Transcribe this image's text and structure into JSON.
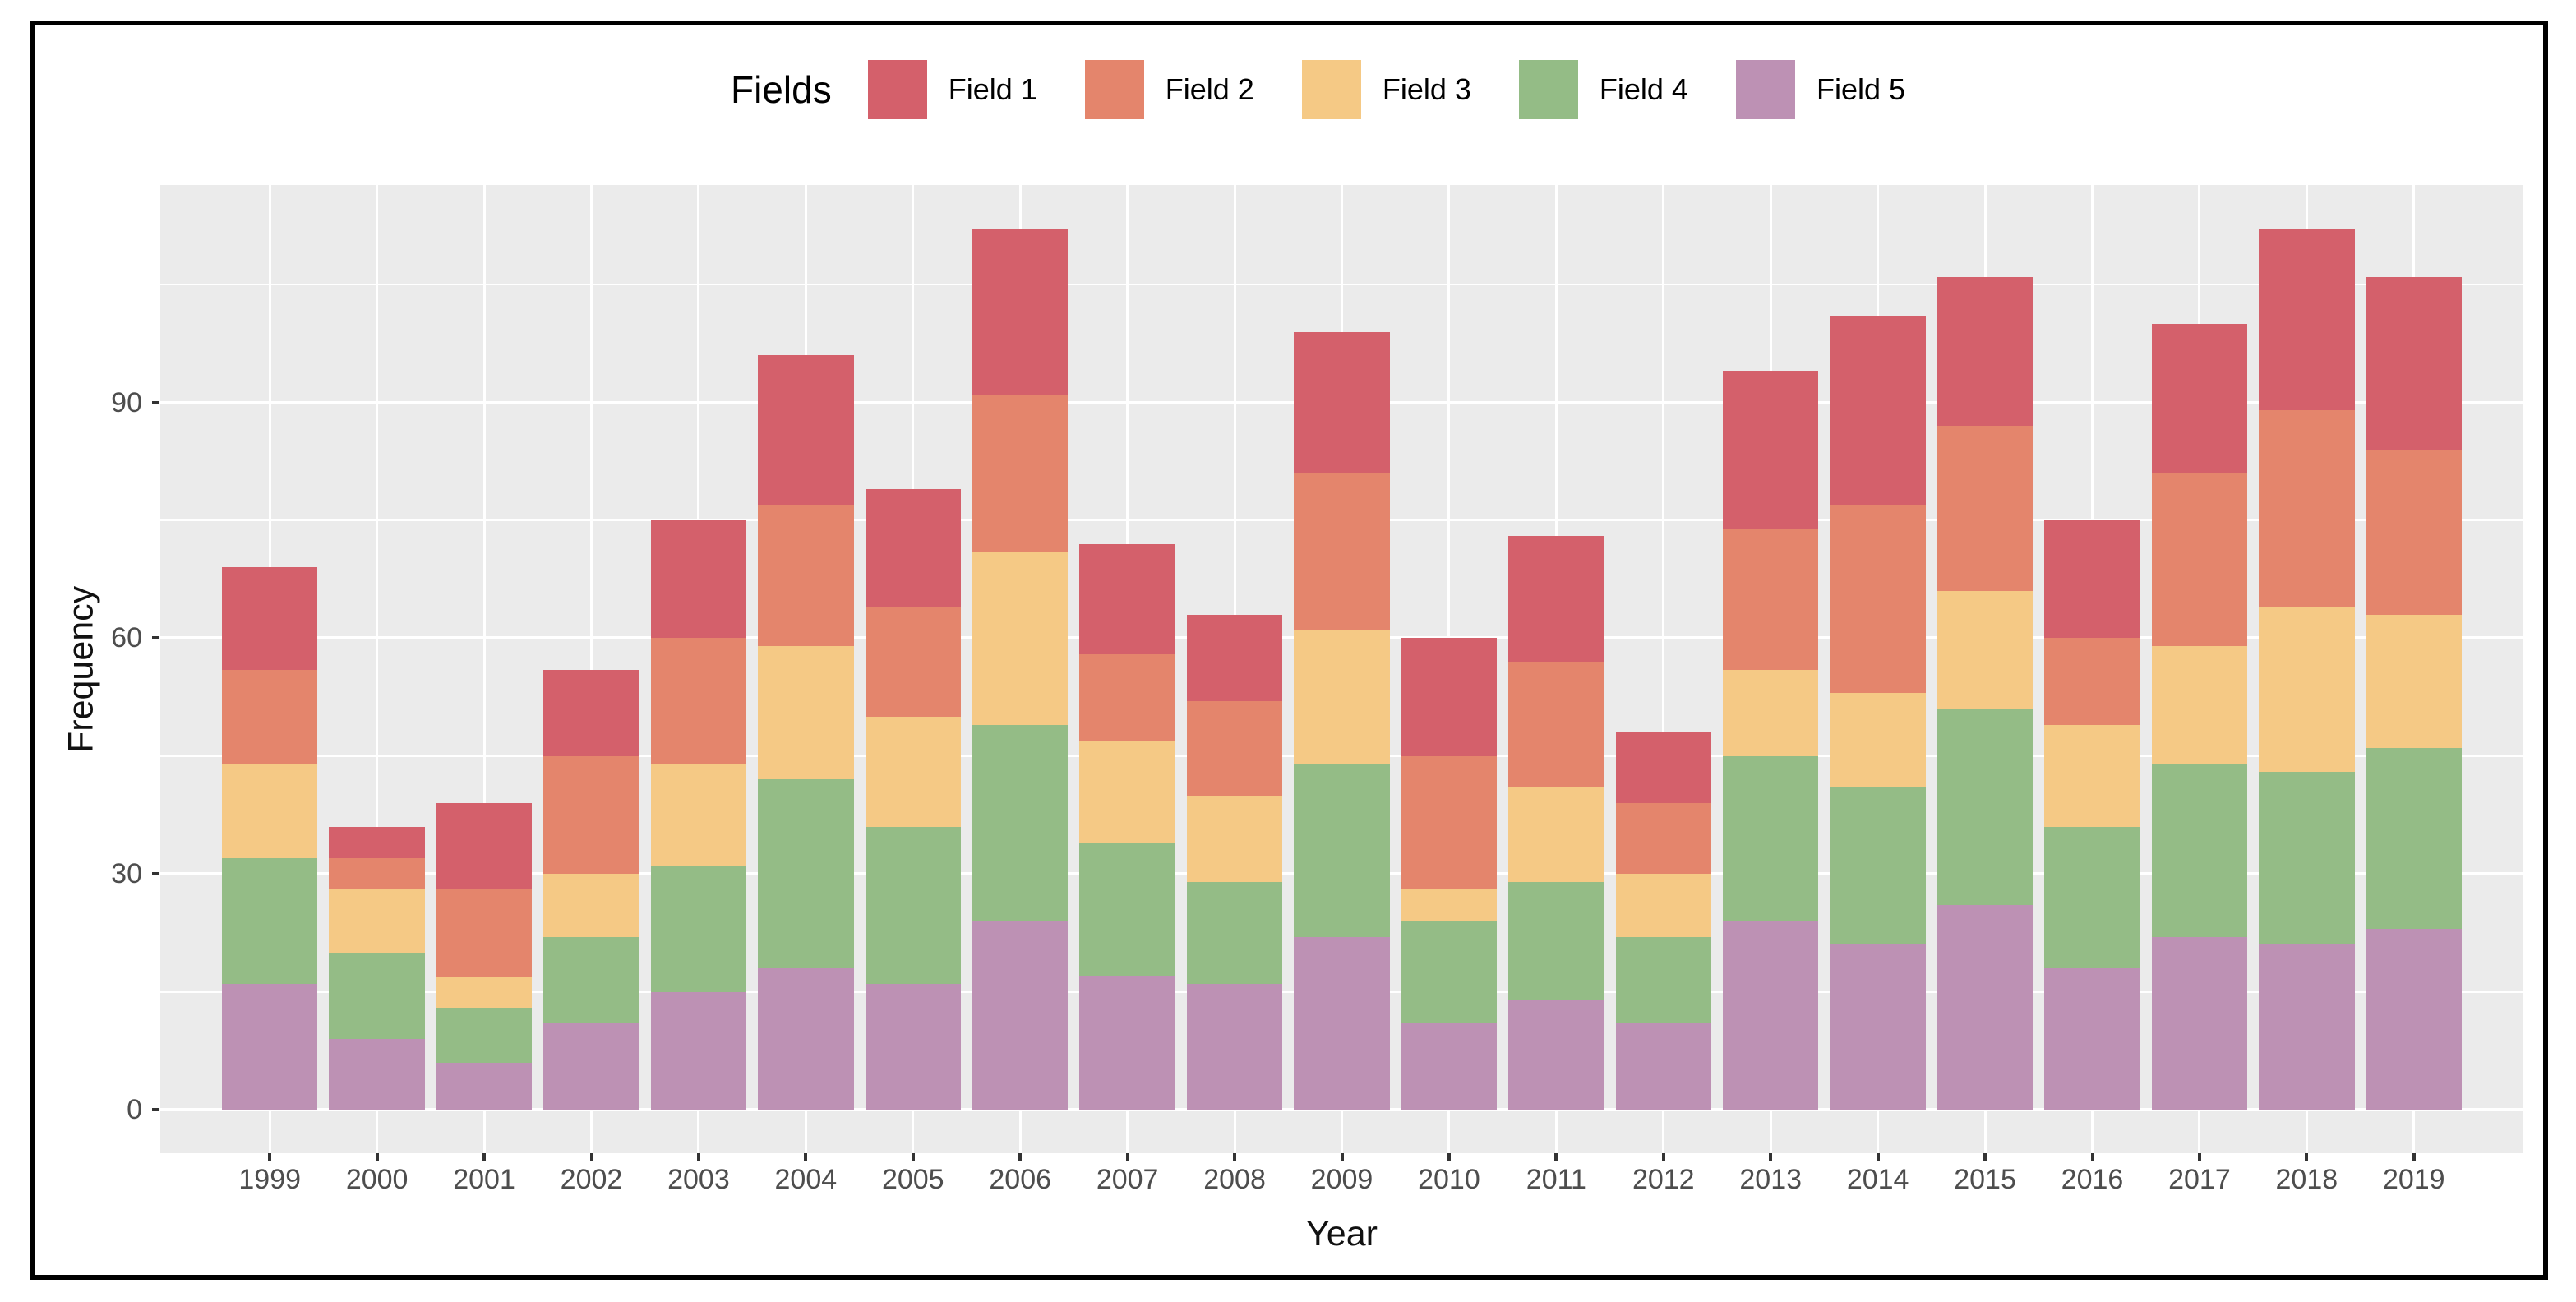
{
  "figure": {
    "background_color": "#FFFFFF",
    "frame_border_color": "#000000"
  },
  "legend": {
    "title": "Fields",
    "position": "top",
    "items": [
      {
        "label": "Field 1",
        "color": "#D4606B"
      },
      {
        "label": "Field 2",
        "color": "#E4856C"
      },
      {
        "label": "Field 3",
        "color": "#F5C985"
      },
      {
        "label": "Field 4",
        "color": "#94BC86"
      },
      {
        "label": "Field 5",
        "color": "#BD91B4"
      }
    ]
  },
  "chart_data": {
    "type": "bar",
    "stacked": true,
    "title": "",
    "xlabel": "Year",
    "ylabel": "Frequency",
    "categories": [
      "1999",
      "2000",
      "2001",
      "2002",
      "2003",
      "2004",
      "2005",
      "2006",
      "2007",
      "2008",
      "2009",
      "2010",
      "2011",
      "2012",
      "2013",
      "2014",
      "2015",
      "2016",
      "2017",
      "2018",
      "2019"
    ],
    "series": [
      {
        "name": "Field 1",
        "color": "#D4606B",
        "values": [
          13,
          4,
          11,
          11,
          15,
          19,
          15,
          21,
          14,
          11,
          18,
          15,
          16,
          9,
          20,
          24,
          19,
          15,
          19,
          23,
          22
        ]
      },
      {
        "name": "Field 2",
        "color": "#E4856C",
        "values": [
          12,
          4,
          11,
          15,
          16,
          18,
          14,
          20,
          11,
          12,
          20,
          17,
          16,
          9,
          18,
          24,
          21,
          11,
          22,
          25,
          21
        ]
      },
      {
        "name": "Field 3",
        "color": "#F5C985",
        "values": [
          12,
          8,
          4,
          8,
          13,
          17,
          14,
          22,
          13,
          11,
          17,
          4,
          12,
          8,
          11,
          12,
          15,
          13,
          15,
          21,
          17
        ]
      },
      {
        "name": "Field 4",
        "color": "#94BC86",
        "values": [
          16,
          11,
          7,
          11,
          16,
          24,
          20,
          25,
          17,
          13,
          22,
          13,
          15,
          11,
          21,
          20,
          25,
          18,
          22,
          22,
          23
        ]
      },
      {
        "name": "Field 5",
        "color": "#BD91B4",
        "values": [
          16,
          9,
          6,
          11,
          15,
          18,
          16,
          24,
          17,
          16,
          22,
          11,
          14,
          11,
          24,
          21,
          26,
          18,
          22,
          21,
          23
        ]
      }
    ],
    "stack_order_bottom_to_top": [
      "Field 5",
      "Field 4",
      "Field 3",
      "Field 2",
      "Field 1"
    ],
    "totals": [
      69,
      36,
      39,
      56,
      75,
      96,
      79,
      112,
      72,
      63,
      99,
      60,
      73,
      48,
      94,
      101,
      106,
      75,
      100,
      112,
      106
    ],
    "y_tick_labels": [
      "0",
      "30",
      "60",
      "90"
    ],
    "y_ticks": [
      0,
      30,
      60,
      90
    ],
    "y_minor_ticks": [
      15,
      45,
      75,
      105
    ],
    "ylim": [
      0,
      112
    ],
    "grid": "on",
    "panel_background": "#EBEBEB",
    "gridline_color": "#FFFFFF",
    "tick_label_color": "#4D4D4D",
    "legend_position": "top"
  }
}
